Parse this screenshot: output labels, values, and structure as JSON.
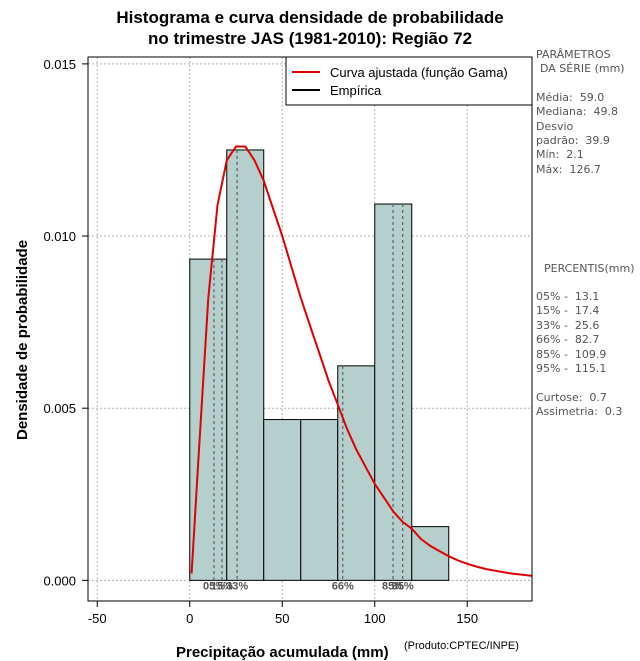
{
  "title_line1": "Histograma e curva densidade de probabilidade",
  "title_line2": "no trimestre JAS (1981-2010): Região 72",
  "x_label": "Precipitação acumulada (mm)",
  "y_label": "Densidade de probabilidade",
  "credit": "(Produto:CPTEC/INPE)",
  "legend": {
    "fitted": "Curva ajustada (função Gama)",
    "empirical": "Empírica"
  },
  "colors": {
    "bars": "#b5cfcd",
    "curve": "#e00000",
    "grid": "#b0b0b0"
  },
  "side_params": {
    "heading1": "PARÂMETROS",
    "heading2": "DA SÉRIE (mm)",
    "media": "Média:  59.0",
    "mediana": "Mediana:  49.8",
    "desvio1": "Desvio",
    "desvio2": "padrão:  39.9",
    "min": "Mín:  2.1",
    "max": "Máx:  126.7"
  },
  "side_percentis": {
    "heading": "PERCENTIS(mm)",
    "p05": "05% -  13.1",
    "p15": "15% -  17.4",
    "p33": "33% -  25.6",
    "p66": "66% -  82.7",
    "p85": "85% -  109.9",
    "p95": "95% -  115.1",
    "curtose": "Curtose:  0.7",
    "assimetria": "Assimetria:  0.3"
  },
  "chart_data": {
    "type": "bar",
    "title": "Histograma e curva densidade de probabilidade no trimestre JAS (1981-2010): Região 72",
    "xlabel": "Precipitação acumulada (mm)",
    "ylabel": "Densidade de probabilidade",
    "xlim": [
      -55,
      185
    ],
    "ylim": [
      -0.0006,
      0.0152
    ],
    "x_ticks": [
      -50,
      0,
      50,
      100,
      150
    ],
    "x_tick_labels": [
      "-50",
      "0",
      "50",
      "100",
      "150"
    ],
    "y_ticks": [
      0.0,
      0.005,
      0.01,
      0.015
    ],
    "y_tick_labels": [
      "0.000",
      "0.005",
      "0.010",
      "0.015"
    ],
    "bins": [
      {
        "from": 0,
        "to": 20,
        "density": 0.00933
      },
      {
        "from": 20,
        "to": 40,
        "density": 0.0125
      },
      {
        "from": 40,
        "to": 60,
        "density": 0.00467
      },
      {
        "from": 60,
        "to": 80,
        "density": 0.00467
      },
      {
        "from": 80,
        "to": 100,
        "density": 0.00623
      },
      {
        "from": 100,
        "to": 120,
        "density": 0.01093
      },
      {
        "from": 120,
        "to": 140,
        "density": 0.00156
      }
    ],
    "fitted_curve": {
      "name": "Curva ajustada (função Gama)",
      "x": [
        1,
        5,
        10,
        15,
        20,
        25,
        30,
        35,
        40,
        45,
        50,
        55,
        60,
        65,
        70,
        75,
        80,
        85,
        90,
        95,
        100,
        105,
        110,
        115,
        120,
        125,
        130,
        135,
        140,
        145,
        150,
        155,
        160,
        165,
        170,
        175,
        180,
        185
      ],
      "y": [
        0.0002,
        0.0038,
        0.0082,
        0.0109,
        0.0122,
        0.0126,
        0.0126,
        0.0122,
        0.0116,
        0.0108,
        0.01,
        0.0091,
        0.0082,
        0.0074,
        0.0066,
        0.0058,
        0.0051,
        0.0044,
        0.0038,
        0.0033,
        0.0028,
        0.0024,
        0.002,
        0.0017,
        0.0015,
        0.0012,
        0.001,
        0.00085,
        0.0007,
        0.00058,
        0.00048,
        0.0004,
        0.00033,
        0.00028,
        0.00023,
        0.00019,
        0.00016,
        0.00013
      ]
    },
    "percentiles": [
      {
        "label": "05%",
        "value": 13.1
      },
      {
        "label": "15%",
        "value": 17.4
      },
      {
        "label": "33%",
        "value": 25.6
      },
      {
        "label": "66%",
        "value": 82.7
      },
      {
        "label": "85%",
        "value": 109.9
      },
      {
        "label": "95%",
        "value": 115.1
      }
    ],
    "legend_position": "top-right",
    "grid": true
  }
}
